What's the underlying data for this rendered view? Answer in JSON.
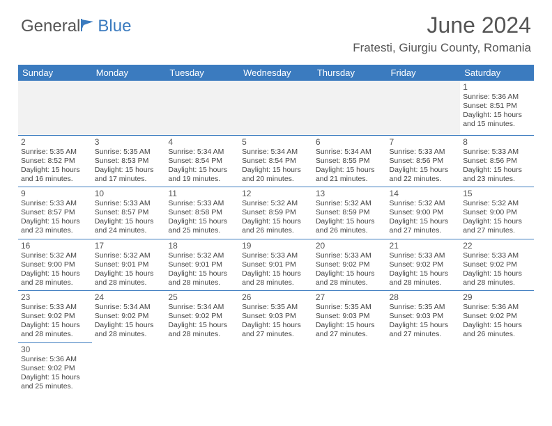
{
  "logo": {
    "part1": "General",
    "part2": "Blue"
  },
  "title": "June 2024",
  "location": "Fratesti, Giurgiu County, Romania",
  "weekdays": [
    "Sunday",
    "Monday",
    "Tuesday",
    "Wednesday",
    "Thursday",
    "Friday",
    "Saturday"
  ],
  "colors": {
    "header_bg": "#3b7bbf",
    "header_fg": "#ffffff",
    "border": "#3b7bbf",
    "empty_bg": "#f2f2f2"
  },
  "weeks": [
    [
      null,
      null,
      null,
      null,
      null,
      null,
      {
        "n": "1",
        "sunrise": "Sunrise: 5:36 AM",
        "sunset": "Sunset: 8:51 PM",
        "daylight": "Daylight: 15 hours and 15 minutes."
      }
    ],
    [
      {
        "n": "2",
        "sunrise": "Sunrise: 5:35 AM",
        "sunset": "Sunset: 8:52 PM",
        "daylight": "Daylight: 15 hours and 16 minutes."
      },
      {
        "n": "3",
        "sunrise": "Sunrise: 5:35 AM",
        "sunset": "Sunset: 8:53 PM",
        "daylight": "Daylight: 15 hours and 17 minutes."
      },
      {
        "n": "4",
        "sunrise": "Sunrise: 5:34 AM",
        "sunset": "Sunset: 8:54 PM",
        "daylight": "Daylight: 15 hours and 19 minutes."
      },
      {
        "n": "5",
        "sunrise": "Sunrise: 5:34 AM",
        "sunset": "Sunset: 8:54 PM",
        "daylight": "Daylight: 15 hours and 20 minutes."
      },
      {
        "n": "6",
        "sunrise": "Sunrise: 5:34 AM",
        "sunset": "Sunset: 8:55 PM",
        "daylight": "Daylight: 15 hours and 21 minutes."
      },
      {
        "n": "7",
        "sunrise": "Sunrise: 5:33 AM",
        "sunset": "Sunset: 8:56 PM",
        "daylight": "Daylight: 15 hours and 22 minutes."
      },
      {
        "n": "8",
        "sunrise": "Sunrise: 5:33 AM",
        "sunset": "Sunset: 8:56 PM",
        "daylight": "Daylight: 15 hours and 23 minutes."
      }
    ],
    [
      {
        "n": "9",
        "sunrise": "Sunrise: 5:33 AM",
        "sunset": "Sunset: 8:57 PM",
        "daylight": "Daylight: 15 hours and 23 minutes."
      },
      {
        "n": "10",
        "sunrise": "Sunrise: 5:33 AM",
        "sunset": "Sunset: 8:57 PM",
        "daylight": "Daylight: 15 hours and 24 minutes."
      },
      {
        "n": "11",
        "sunrise": "Sunrise: 5:33 AM",
        "sunset": "Sunset: 8:58 PM",
        "daylight": "Daylight: 15 hours and 25 minutes."
      },
      {
        "n": "12",
        "sunrise": "Sunrise: 5:32 AM",
        "sunset": "Sunset: 8:59 PM",
        "daylight": "Daylight: 15 hours and 26 minutes."
      },
      {
        "n": "13",
        "sunrise": "Sunrise: 5:32 AM",
        "sunset": "Sunset: 8:59 PM",
        "daylight": "Daylight: 15 hours and 26 minutes."
      },
      {
        "n": "14",
        "sunrise": "Sunrise: 5:32 AM",
        "sunset": "Sunset: 9:00 PM",
        "daylight": "Daylight: 15 hours and 27 minutes."
      },
      {
        "n": "15",
        "sunrise": "Sunrise: 5:32 AM",
        "sunset": "Sunset: 9:00 PM",
        "daylight": "Daylight: 15 hours and 27 minutes."
      }
    ],
    [
      {
        "n": "16",
        "sunrise": "Sunrise: 5:32 AM",
        "sunset": "Sunset: 9:00 PM",
        "daylight": "Daylight: 15 hours and 28 minutes."
      },
      {
        "n": "17",
        "sunrise": "Sunrise: 5:32 AM",
        "sunset": "Sunset: 9:01 PM",
        "daylight": "Daylight: 15 hours and 28 minutes."
      },
      {
        "n": "18",
        "sunrise": "Sunrise: 5:32 AM",
        "sunset": "Sunset: 9:01 PM",
        "daylight": "Daylight: 15 hours and 28 minutes."
      },
      {
        "n": "19",
        "sunrise": "Sunrise: 5:33 AM",
        "sunset": "Sunset: 9:01 PM",
        "daylight": "Daylight: 15 hours and 28 minutes."
      },
      {
        "n": "20",
        "sunrise": "Sunrise: 5:33 AM",
        "sunset": "Sunset: 9:02 PM",
        "daylight": "Daylight: 15 hours and 28 minutes."
      },
      {
        "n": "21",
        "sunrise": "Sunrise: 5:33 AM",
        "sunset": "Sunset: 9:02 PM",
        "daylight": "Daylight: 15 hours and 28 minutes."
      },
      {
        "n": "22",
        "sunrise": "Sunrise: 5:33 AM",
        "sunset": "Sunset: 9:02 PM",
        "daylight": "Daylight: 15 hours and 28 minutes."
      }
    ],
    [
      {
        "n": "23",
        "sunrise": "Sunrise: 5:33 AM",
        "sunset": "Sunset: 9:02 PM",
        "daylight": "Daylight: 15 hours and 28 minutes."
      },
      {
        "n": "24",
        "sunrise": "Sunrise: 5:34 AM",
        "sunset": "Sunset: 9:02 PM",
        "daylight": "Daylight: 15 hours and 28 minutes."
      },
      {
        "n": "25",
        "sunrise": "Sunrise: 5:34 AM",
        "sunset": "Sunset: 9:02 PM",
        "daylight": "Daylight: 15 hours and 28 minutes."
      },
      {
        "n": "26",
        "sunrise": "Sunrise: 5:35 AM",
        "sunset": "Sunset: 9:03 PM",
        "daylight": "Daylight: 15 hours and 27 minutes."
      },
      {
        "n": "27",
        "sunrise": "Sunrise: 5:35 AM",
        "sunset": "Sunset: 9:03 PM",
        "daylight": "Daylight: 15 hours and 27 minutes."
      },
      {
        "n": "28",
        "sunrise": "Sunrise: 5:35 AM",
        "sunset": "Sunset: 9:03 PM",
        "daylight": "Daylight: 15 hours and 27 minutes."
      },
      {
        "n": "29",
        "sunrise": "Sunrise: 5:36 AM",
        "sunset": "Sunset: 9:02 PM",
        "daylight": "Daylight: 15 hours and 26 minutes."
      }
    ],
    [
      {
        "n": "30",
        "sunrise": "Sunrise: 5:36 AM",
        "sunset": "Sunset: 9:02 PM",
        "daylight": "Daylight: 15 hours and 25 minutes."
      },
      null,
      null,
      null,
      null,
      null,
      null
    ]
  ]
}
